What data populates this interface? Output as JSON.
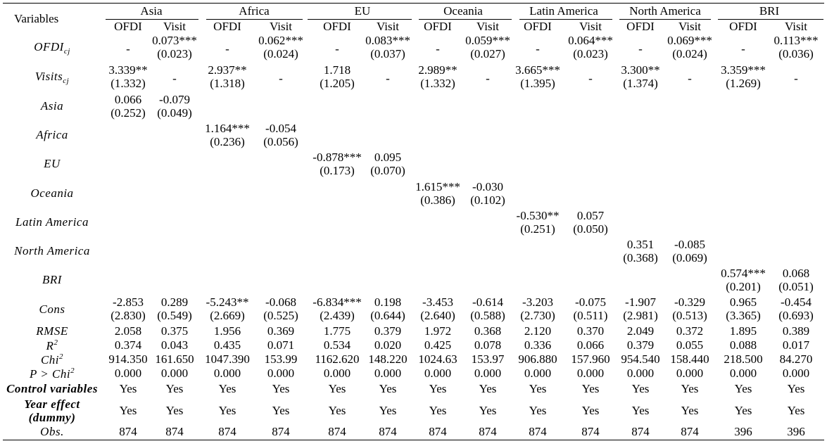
{
  "header": {
    "variables_label": "Variables",
    "groups": [
      "Asia",
      "Africa",
      "EU",
      "Oceania",
      "Latin America",
      "North America",
      "BRI"
    ],
    "col_labels": [
      "OFDI",
      "Visit"
    ]
  },
  "rows": [
    {
      "label": "OFDI",
      "sub": "cj",
      "coef": [
        "-",
        "0.073***",
        "-",
        "0.062***",
        "-",
        "0.083***",
        "-",
        "0.059***",
        "-",
        "0.064***",
        "-",
        "0.069***",
        "-",
        "0.113***"
      ],
      "se": [
        "",
        "(0.023)",
        "",
        "(0.024)",
        "",
        "(0.037)",
        "",
        "(0.027)",
        "",
        "(0.023)",
        "",
        "(0.024)",
        "",
        "(0.036)"
      ]
    },
    {
      "label": "Visits",
      "sub": "cj",
      "coef": [
        "3.339**",
        "-",
        "2.937**",
        "-",
        "1.718",
        "-",
        "2.989**",
        "-",
        "3.665***",
        "-",
        "3.300**",
        "-",
        "3.359***",
        "-"
      ],
      "se": [
        "(1.332)",
        "",
        "(1.318)",
        "",
        "(1.205)",
        "",
        "(1.332)",
        "",
        "(1.395)",
        "",
        "(1.374)",
        "",
        "(1.269)",
        ""
      ]
    },
    {
      "label": "Asia",
      "coef": [
        "0.066",
        "-0.079",
        "",
        "",
        "",
        "",
        "",
        "",
        "",
        "",
        "",
        "",
        "",
        ""
      ],
      "se": [
        "(0.252)",
        "(0.049)",
        "",
        "",
        "",
        "",
        "",
        "",
        "",
        "",
        "",
        "",
        "",
        ""
      ]
    },
    {
      "label": "Africa",
      "coef": [
        "",
        "",
        "1.164***",
        "-0.054",
        "",
        "",
        "",
        "",
        "",
        "",
        "",
        "",
        "",
        ""
      ],
      "se": [
        "",
        "",
        "(0.236)",
        "(0.056)",
        "",
        "",
        "",
        "",
        "",
        "",
        "",
        "",
        "",
        ""
      ]
    },
    {
      "label": "EU",
      "coef": [
        "",
        "",
        "",
        "",
        "-0.878***",
        "0.095",
        "",
        "",
        "",
        "",
        "",
        "",
        "",
        ""
      ],
      "se": [
        "",
        "",
        "",
        "",
        "(0.173)",
        "(0.070)",
        "",
        "",
        "",
        "",
        "",
        "",
        "",
        ""
      ]
    },
    {
      "label": "Oceania",
      "coef": [
        "",
        "",
        "",
        "",
        "",
        "",
        "1.615***",
        "-0.030",
        "",
        "",
        "",
        "",
        "",
        ""
      ],
      "se": [
        "",
        "",
        "",
        "",
        "",
        "",
        "(0.386)",
        "(0.102)",
        "",
        "",
        "",
        "",
        "",
        ""
      ]
    },
    {
      "label": "Latin America",
      "coef": [
        "",
        "",
        "",
        "",
        "",
        "",
        "",
        "",
        "-0.530**",
        "0.057",
        "",
        "",
        "",
        ""
      ],
      "se": [
        "",
        "",
        "",
        "",
        "",
        "",
        "",
        "",
        "(0.251)",
        "(0.050)",
        "",
        "",
        "",
        ""
      ]
    },
    {
      "label": "North America",
      "coef": [
        "",
        "",
        "",
        "",
        "",
        "",
        "",
        "",
        "",
        "",
        "0.351",
        "-0.085",
        "",
        ""
      ],
      "se": [
        "",
        "",
        "",
        "",
        "",
        "",
        "",
        "",
        "",
        "",
        "(0.368)",
        "(0.069)",
        "",
        ""
      ]
    },
    {
      "label": "BRI",
      "coef": [
        "",
        "",
        "",
        "",
        "",
        "",
        "",
        "",
        "",
        "",
        "",
        "",
        "0.574***",
        "0.068"
      ],
      "se": [
        "",
        "",
        "",
        "",
        "",
        "",
        "",
        "",
        "",
        "",
        "",
        "",
        "(0.201)",
        "(0.051)"
      ]
    },
    {
      "label": "Cons",
      "coef": [
        "-2.853",
        "0.289",
        "-5.243**",
        "-0.068",
        "-6.834***",
        "0.198",
        "-3.453",
        "-0.614",
        "-3.203",
        "-0.075",
        "-1.907",
        "-0.329",
        "0.965",
        "-0.454"
      ],
      "se": [
        "(2.830)",
        "(0.549)",
        "(2.669)",
        "(0.525)",
        "(2.439)",
        "(0.644)",
        "(2.640)",
        "(0.588)",
        "(2.730)",
        "(0.511)",
        "(2.981)",
        "(0.513)",
        "(3.365)",
        "(0.693)"
      ]
    }
  ],
  "stats": [
    {
      "label": "RMSE",
      "values": [
        "2.058",
        "0.375",
        "1.956",
        "0.369",
        "1.775",
        "0.379",
        "1.972",
        "0.368",
        "2.120",
        "0.370",
        "2.049",
        "0.372",
        "1.895",
        "0.389"
      ]
    },
    {
      "label": "R",
      "sup": "2",
      "values": [
        "0.374",
        "0.043",
        "0.435",
        "0.071",
        "0.534",
        "0.020",
        "0.425",
        "0.078",
        "0.336",
        "0.066",
        "0.379",
        "0.055",
        "0.088",
        "0.017"
      ]
    },
    {
      "label": "Chi",
      "sup": "2",
      "values": [
        "914.350",
        "161.650",
        "1047.390",
        "153.99",
        "1162.620",
        "148.220",
        "1024.63",
        "153.97",
        "906.880",
        "157.960",
        "954.540",
        "158.440",
        "218.500",
        "84.270"
      ]
    },
    {
      "label": "P > Chi",
      "sup": "2",
      "values": [
        "0.000",
        "0.000",
        "0.000",
        "0.000",
        "0.000",
        "0.000",
        "0.000",
        "0.000",
        "0.000",
        "0.000",
        "0.000",
        "0.000",
        "0.000",
        "0.000"
      ]
    }
  ],
  "controls": [
    {
      "label": "Control variables",
      "values": [
        "Yes",
        "Yes",
        "Yes",
        "Yes",
        "Yes",
        "Yes",
        "Yes",
        "Yes",
        "Yes",
        "Yes",
        "Yes",
        "Yes",
        "Yes",
        "Yes"
      ]
    },
    {
      "label": "Year effect",
      "label2": "(dummy)",
      "values": [
        "Yes",
        "Yes",
        "Yes",
        "Yes",
        "Yes",
        "Yes",
        "Yes",
        "Yes",
        "Yes",
        "Yes",
        "Yes",
        "Yes",
        "Yes",
        "Yes"
      ]
    },
    {
      "label": "Obs.",
      "values": [
        "874",
        "874",
        "874",
        "874",
        "874",
        "874",
        "874",
        "874",
        "874",
        "874",
        "874",
        "874",
        "396",
        "396"
      ]
    }
  ]
}
